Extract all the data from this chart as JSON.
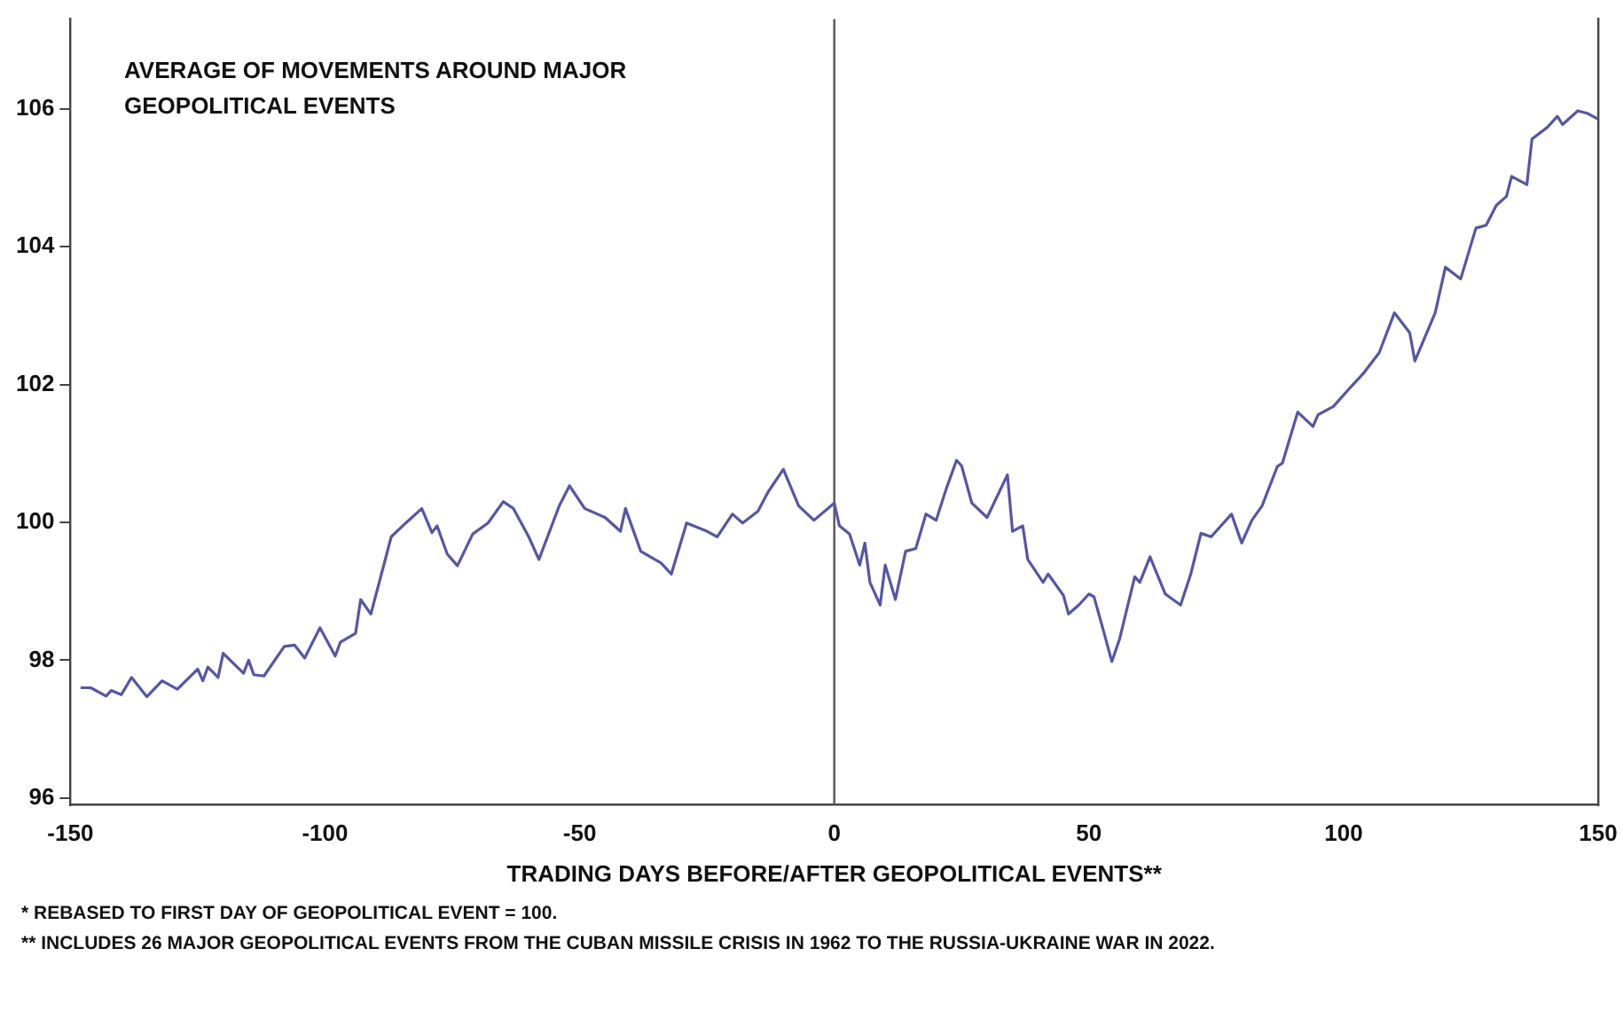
{
  "chart_data": {
    "type": "line",
    "title": "AVERAGE OF MOVEMENTS AROUND MAJOR GEOPOLITICAL EVENTS",
    "xlabel": "TRADING DAYS BEFORE/AFTER GEOPOLITICAL EVENTS**",
    "annotations": [
      "* REBASED TO FIRST DAY OF GEOPOLITICAL EVENT = 100.",
      "** INCLUDES 26 MAJOR GEOPOLITICAL EVENTS FROM THE CUBAN MISSILE CRISIS IN 1962 TO THE RUSSIA-UKRAINE WAR IN 2022."
    ],
    "xlim": [
      -150,
      150
    ],
    "xticks": [
      -150,
      -100,
      -50,
      0,
      50,
      100,
      150
    ],
    "ylim": [
      95.9,
      107.3
    ],
    "yticks": [
      96,
      98,
      100,
      102,
      104,
      106
    ],
    "grid": false,
    "legend": false,
    "marker": "none",
    "line_style": "solid",
    "ref_lines": [
      {
        "axis": "x",
        "value": 0,
        "color": "#555555"
      }
    ],
    "series": [
      {
        "color": "#5656a6",
        "x": [
          -148,
          -146,
          -143,
          -142,
          -140,
          -138,
          -135,
          -132,
          -129,
          -125,
          -124,
          -123,
          -121,
          -120,
          -116,
          -115,
          -114,
          -112,
          -108,
          -106,
          -104,
          -101,
          -98,
          -97,
          -94,
          -93,
          -91,
          -87,
          -84,
          -81,
          -79,
          -78,
          -76,
          -74,
          -71,
          -68,
          -65,
          -63,
          -60,
          -58,
          -54,
          -52,
          -49,
          -45,
          -42,
          -41,
          -38,
          -34,
          -32,
          -29,
          -25,
          -23,
          -20,
          -18,
          -15,
          -13,
          -10,
          -7,
          -4,
          0,
          1,
          3,
          5,
          6,
          7,
          9,
          10,
          12,
          14,
          16,
          18,
          20,
          22,
          24,
          25,
          27,
          30,
          34,
          35,
          37,
          38,
          41,
          42,
          45,
          46,
          48,
          50,
          51,
          53,
          54.5,
          56,
          59,
          60,
          62,
          65,
          68,
          70,
          72,
          74,
          78,
          80,
          82,
          84,
          87,
          88,
          91,
          94,
          95,
          98,
          101,
          104,
          107,
          110,
          113,
          114,
          118,
          120,
          123,
          126,
          128,
          130,
          132,
          133,
          136,
          137,
          140,
          142,
          143,
          146,
          148,
          150
        ],
        "values": [
          97.6,
          97.6,
          97.48,
          97.56,
          97.5,
          97.75,
          97.47,
          97.7,
          97.58,
          97.87,
          97.7,
          97.9,
          97.75,
          98.1,
          97.81,
          98.0,
          97.79,
          97.77,
          98.2,
          98.22,
          98.03,
          98.47,
          98.06,
          98.26,
          98.39,
          98.88,
          98.67,
          99.79,
          100.0,
          100.2,
          99.85,
          99.95,
          99.54,
          99.37,
          99.83,
          99.99,
          100.3,
          100.2,
          99.79,
          99.46,
          100.24,
          100.53,
          100.2,
          100.07,
          99.87,
          100.2,
          99.58,
          99.41,
          99.25,
          99.99,
          99.87,
          99.79,
          100.12,
          99.99,
          100.16,
          100.44,
          100.77,
          100.24,
          100.03,
          100.28,
          99.95,
          99.83,
          99.38,
          99.7,
          99.13,
          98.8,
          99.38,
          98.88,
          99.58,
          99.62,
          100.12,
          100.03,
          100.49,
          100.9,
          100.82,
          100.28,
          100.07,
          100.69,
          99.87,
          99.95,
          99.46,
          99.13,
          99.25,
          98.94,
          98.67,
          98.8,
          98.96,
          98.92,
          98.39,
          97.98,
          98.3,
          99.21,
          99.13,
          99.5,
          98.96,
          98.8,
          99.25,
          99.84,
          99.79,
          100.12,
          99.7,
          100.03,
          100.24,
          100.81,
          100.86,
          101.6,
          101.39,
          101.56,
          101.68,
          101.93,
          102.17,
          102.46,
          103.04,
          102.75,
          102.34,
          103.04,
          103.7,
          103.53,
          104.27,
          104.31,
          104.6,
          104.73,
          105.02,
          104.9,
          105.56,
          105.73,
          105.89,
          105.77,
          105.97,
          105.93,
          105.85
        ]
      }
    ]
  }
}
